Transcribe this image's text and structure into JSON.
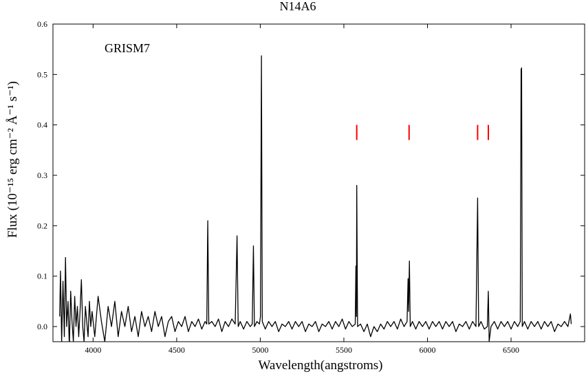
{
  "chart_data": {
    "type": "line",
    "title": "N14A6",
    "annotation": "GRISM7",
    "xlabel": "Wavelength(angstroms)",
    "ylabel": "Flux (10⁻¹⁵ erg cm⁻² Å⁻¹ s⁻¹)",
    "xlim": [
      3760,
      6940
    ],
    "ylim": [
      -0.03,
      0.6
    ],
    "xticks": [
      4000,
      4500,
      5000,
      5500,
      6000,
      6500
    ],
    "yticks": [
      {
        "value": 0,
        "label": "0.0"
      },
      0.1,
      0.2,
      0.3,
      0.4,
      0.5,
      0.6
    ],
    "series": [
      {
        "color": "#000000",
        "x": [
          3800,
          3805,
          3812,
          3820,
          3828,
          3835,
          3842,
          3850,
          3858,
          3866,
          3874,
          3882,
          3890,
          3898,
          3906,
          3914,
          3922,
          3930,
          3938,
          3946,
          3954,
          3962,
          3970,
          3978,
          3986,
          3994,
          4010,
          4030,
          4050,
          4070,
          4090,
          4110,
          4130,
          4150,
          4170,
          4190,
          4210,
          4230,
          4250,
          4270,
          4290,
          4310,
          4330,
          4350,
          4370,
          4390,
          4410,
          4430,
          4450,
          4470,
          4490,
          4510,
          4530,
          4550,
          4570,
          4590,
          4610,
          4630,
          4650,
          4670,
          4680,
          4686,
          4692,
          4710,
          4730,
          4750,
          4770,
          4790,
          4810,
          4830,
          4850,
          4861,
          4868,
          4880,
          4900,
          4920,
          4940,
          4952,
          4959,
          4965,
          4980,
          4995,
          5001,
          5007,
          5012,
          5030,
          5050,
          5070,
          5090,
          5110,
          5130,
          5150,
          5170,
          5190,
          5210,
          5230,
          5250,
          5270,
          5290,
          5310,
          5330,
          5350,
          5370,
          5390,
          5410,
          5430,
          5450,
          5470,
          5490,
          5510,
          5530,
          5550,
          5568,
          5572,
          5575,
          5577,
          5582,
          5600,
          5620,
          5640,
          5660,
          5680,
          5700,
          5720,
          5740,
          5760,
          5780,
          5800,
          5820,
          5840,
          5860,
          5878,
          5884,
          5887,
          5892,
          5897,
          5910,
          5930,
          5950,
          5970,
          5990,
          6010,
          6030,
          6050,
          6070,
          6090,
          6110,
          6130,
          6150,
          6170,
          6190,
          6210,
          6230,
          6250,
          6270,
          6290,
          6300,
          6306,
          6320,
          6340,
          6358,
          6364,
          6369,
          6380,
          6400,
          6420,
          6440,
          6460,
          6480,
          6500,
          6520,
          6540,
          6555,
          6560,
          6563,
          6567,
          6580,
          6600,
          6620,
          6640,
          6660,
          6680,
          6700,
          6720,
          6740,
          6760,
          6780,
          6800,
          6820,
          6840,
          6855,
          6860
        ],
        "values": [
          0.02,
          0.11,
          -0.03,
          0.09,
          -0.02,
          0.137,
          0.0,
          0.05,
          -0.04,
          0.07,
          0.01,
          -0.03,
          0.06,
          0.0,
          0.04,
          -0.02,
          0.03,
          0.093,
          0.0,
          -0.03,
          0.04,
          0.01,
          -0.02,
          0.05,
          0.0,
          0.03,
          -0.02,
          0.06,
          0.01,
          -0.03,
          0.04,
          0.0,
          0.05,
          -0.02,
          0.03,
          0.0,
          0.04,
          -0.01,
          0.02,
          -0.02,
          0.03,
          0.0,
          0.02,
          -0.01,
          0.03,
          0.0,
          0.02,
          -0.02,
          0.01,
          0.02,
          -0.01,
          0.01,
          0.0,
          0.02,
          -0.01,
          0.01,
          0.0,
          0.015,
          -0.005,
          0.01,
          0.005,
          0.21,
          0.005,
          0.01,
          0.0,
          0.015,
          -0.01,
          0.01,
          0.0,
          0.015,
          0.005,
          0.18,
          0.0,
          0.01,
          -0.005,
          0.01,
          0.0,
          0.005,
          0.16,
          0.0,
          0.01,
          0.005,
          0.02,
          0.537,
          0.01,
          -0.005,
          0.01,
          0.0,
          0.01,
          -0.01,
          0.005,
          0.0,
          0.01,
          -0.005,
          0.01,
          0.0,
          0.01,
          -0.01,
          0.005,
          0.0,
          0.01,
          -0.01,
          0.005,
          0.0,
          0.01,
          -0.005,
          0.01,
          0.0,
          0.015,
          -0.005,
          0.01,
          0.0,
          0.005,
          0.12,
          0.02,
          0.28,
          0.0,
          0.005,
          -0.01,
          0.005,
          -0.02,
          0.0,
          -0.01,
          0.005,
          -0.005,
          0.01,
          0.0,
          0.01,
          -0.005,
          0.015,
          0.0,
          0.01,
          0.095,
          0.03,
          0.13,
          0.0,
          0.01,
          -0.005,
          0.01,
          0.0,
          0.01,
          -0.005,
          0.01,
          0.0,
          0.01,
          -0.005,
          0.01,
          0.0,
          0.01,
          -0.01,
          0.005,
          0.0,
          0.01,
          -0.005,
          0.01,
          0.0,
          0.255,
          0.0,
          0.01,
          -0.005,
          0.0,
          0.07,
          -0.03,
          0.0,
          0.01,
          -0.005,
          0.01,
          0.0,
          0.01,
          -0.005,
          0.01,
          0.0,
          0.01,
          0.51,
          0.513,
          0.0,
          0.01,
          -0.005,
          0.01,
          0.0,
          0.01,
          -0.005,
          0.01,
          0.0,
          0.01,
          -0.01,
          0.005,
          0.0,
          0.01,
          0.0,
          0.025,
          0.005
        ]
      }
    ],
    "markers": {
      "color": "#ff0000",
      "x": [
        5577,
        5890,
        6300,
        6364
      ],
      "ymin": 0.37,
      "ymax": 0.4
    }
  }
}
